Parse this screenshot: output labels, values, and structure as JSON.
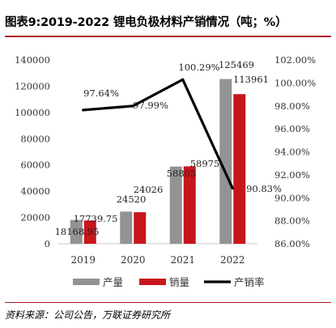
{
  "title": "图表9:2019-2022 锂电负极材料产销情况（吨；%）",
  "source": "资料来源：公司公告，万联证券研究所",
  "chart_data": {
    "type": "bar",
    "categories": [
      "2019",
      "2020",
      "2021",
      "2022"
    ],
    "series": [
      {
        "name": "产量",
        "kind": "bar",
        "axis": "left",
        "color": "#939393",
        "values": [
          18168.95,
          24520,
          58805,
          125469
        ],
        "labels": [
          "18168.95",
          "24520",
          "58805",
          "125469"
        ]
      },
      {
        "name": "销量",
        "kind": "bar",
        "axis": "left",
        "color": "#c8161d",
        "values": [
          17739.75,
          24026,
          58975,
          113961
        ],
        "labels": [
          "17739.75",
          "24026",
          "58975",
          "113961"
        ]
      },
      {
        "name": "产销率",
        "kind": "line",
        "axis": "right",
        "color": "#000000",
        "values": [
          97.64,
          97.99,
          100.29,
          90.83
        ],
        "labels": [
          "97.64%",
          "97.99%",
          "100.29%",
          "90.83%"
        ]
      }
    ],
    "left_axis": {
      "min": 0,
      "max": 140000,
      "step": 20000,
      "ticks": [
        "0",
        "20000",
        "40000",
        "60000",
        "80000",
        "100000",
        "120000",
        "140000"
      ]
    },
    "right_axis": {
      "min": 86,
      "max": 102,
      "step": 2,
      "ticks": [
        "86.00%",
        "88.00%",
        "90.00%",
        "92.00%",
        "94.00%",
        "96.00%",
        "98.00%",
        "100.00%",
        "102.00%"
      ]
    },
    "legend_position": "bottom",
    "grid": false
  }
}
